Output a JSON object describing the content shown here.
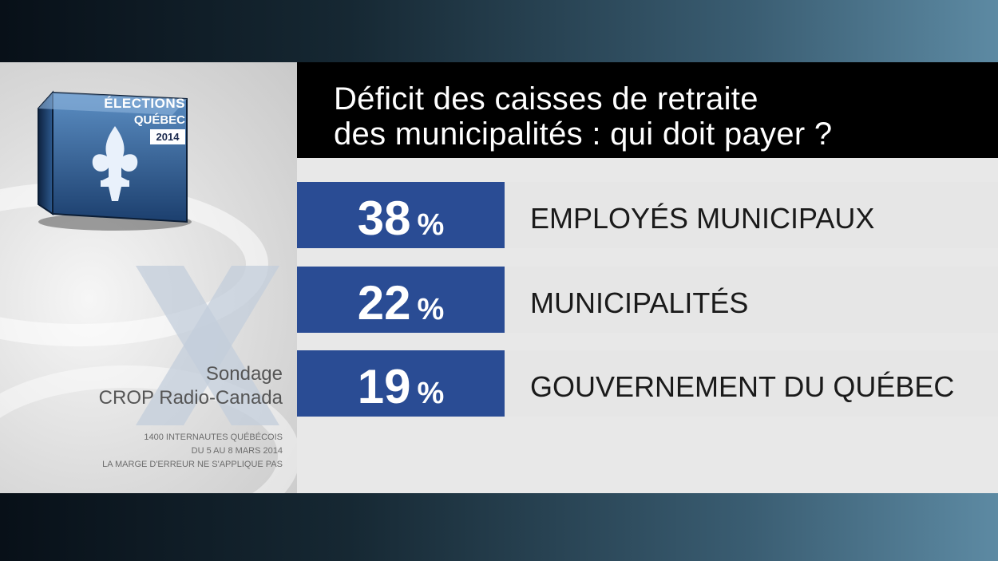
{
  "logo": {
    "line1": "ÉLECTIONS",
    "line2": "QUÉBEC",
    "year": "2014"
  },
  "survey": {
    "line1": "Sondage",
    "line2": "CROP Radio-Canada",
    "notes": [
      "1400 INTERNAUTES QUÉBÉCOIS",
      "DU 5 AU 8 MARS 2014",
      "LA MARGE D'ERREUR NE S'APPLIQUE PAS"
    ]
  },
  "colors": {
    "accent": "#2a4c94",
    "title_bg": "#000000",
    "row_bg": "#e6e6e6"
  },
  "chart_data": {
    "type": "bar",
    "title_lines": [
      "Déficit des caisses de retraite",
      "des municipalités : qui doit payer ?"
    ],
    "categories": [
      "EMPLOYÉS MUNICIPAUX",
      "MUNICIPALITÉS",
      "GOUVERNEMENT DU QUÉBEC"
    ],
    "values": [
      38,
      22,
      19
    ],
    "unit": "%"
  }
}
